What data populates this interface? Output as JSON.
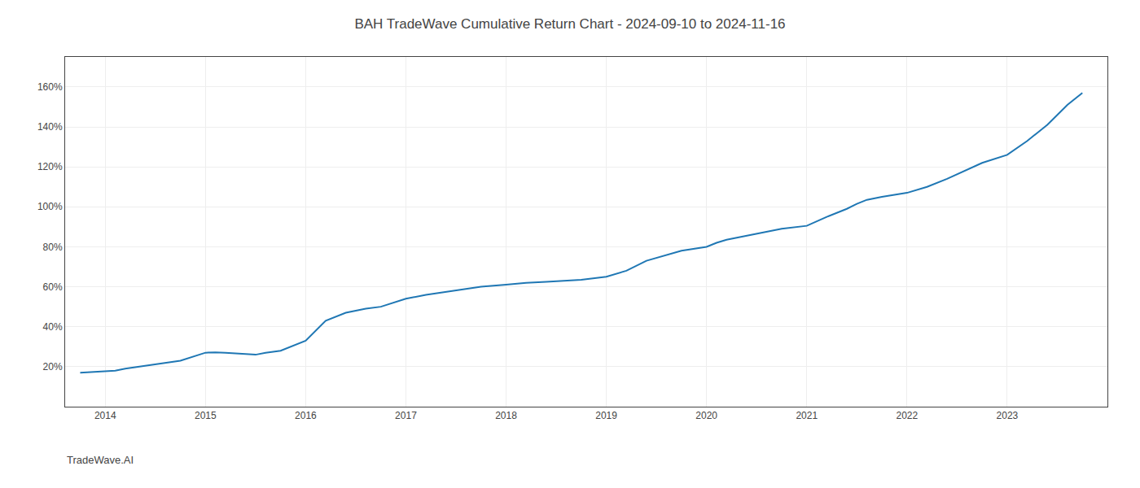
{
  "chart_data": {
    "type": "line",
    "title": "BAH TradeWave Cumulative Return Chart - 2024-09-10 to 2024-11-16",
    "annotations": [
      "TradeWave.AI"
    ],
    "x": [
      2013.75,
      2014.0,
      2014.1,
      2014.2,
      2014.4,
      2014.6,
      2014.75,
      2015.0,
      2015.1,
      2015.2,
      2015.4,
      2015.5,
      2015.6,
      2015.75,
      2016.0,
      2016.1,
      2016.2,
      2016.4,
      2016.6,
      2016.75,
      2017.0,
      2017.2,
      2017.4,
      2017.6,
      2017.75,
      2018.0,
      2018.1,
      2018.2,
      2018.4,
      2018.6,
      2018.75,
      2019.0,
      2019.2,
      2019.4,
      2019.6,
      2019.75,
      2020.0,
      2020.1,
      2020.2,
      2020.4,
      2020.6,
      2020.75,
      2021.0,
      2021.2,
      2021.4,
      2021.5,
      2021.6,
      2021.75,
      2022.0,
      2022.2,
      2022.4,
      2022.6,
      2022.75,
      2023.0,
      2023.2,
      2023.4,
      2023.6,
      2023.75
    ],
    "values": [
      17.0,
      17.5,
      18.0,
      19.0,
      20.5,
      22.0,
      23.0,
      27.0,
      27.2,
      27.0,
      26.5,
      26.0,
      27.0,
      28.0,
      33.0,
      38.0,
      43.0,
      47.0,
      49.0,
      50.0,
      54.0,
      56.0,
      57.5,
      59.0,
      60.0,
      61.0,
      61.5,
      62.0,
      62.5,
      63.0,
      63.5,
      65.0,
      68.0,
      73.0,
      76.0,
      78.0,
      80.0,
      82.0,
      83.5,
      85.5,
      87.5,
      89.0,
      90.5,
      95.0,
      99.0,
      101.5,
      103.5,
      105.0,
      107.0,
      110.0,
      114.0,
      118.5,
      122.0,
      126.0,
      133.0,
      141.0,
      151.0,
      157.0
    ],
    "xlim": [
      2013.6,
      2024.0
    ],
    "xticks": [
      2014,
      2015,
      2016,
      2017,
      2018,
      2019,
      2020,
      2021,
      2022,
      2023
    ],
    "ylim": [
      0,
      175
    ],
    "yticks": [
      {
        "value": 20,
        "label": "20%"
      },
      {
        "value": 40,
        "label": "40%"
      },
      {
        "value": 60,
        "label": "60%"
      },
      {
        "value": 80,
        "label": "80%"
      },
      {
        "value": 100,
        "label": "100%"
      },
      {
        "value": 120,
        "label": "120%"
      },
      {
        "value": 140,
        "label": "140%"
      },
      {
        "value": 160,
        "label": "160%"
      }
    ],
    "grid": true
  }
}
